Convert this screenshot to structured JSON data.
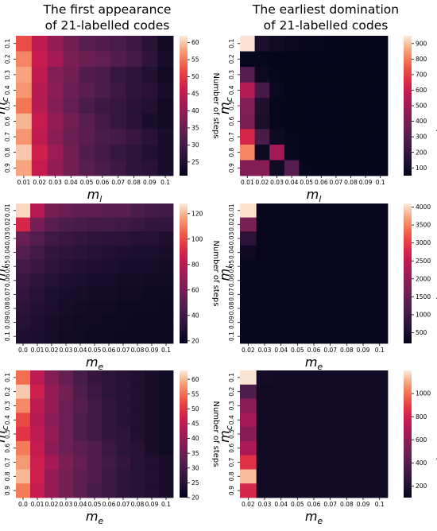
{
  "column_titles": {
    "left": [
      "The first appearance",
      "of 21-labelled codes"
    ],
    "right": [
      "The earliest domination",
      "of 21-labelled codes"
    ]
  },
  "colorbar_label": "Number of steps",
  "chart_data": [
    {
      "id": "r1c1",
      "type": "heatmap",
      "xlabel": "m_l",
      "ylabel": "m_c",
      "x": [
        "0.01",
        "0.02",
        "0.03",
        "0.04",
        "0.05",
        "0.06",
        "0.07",
        "0.08",
        "0.09",
        "0.1"
      ],
      "y": [
        "0.1",
        "0.2",
        "0.3",
        "0.4",
        "0.5",
        "0.6",
        "0.7",
        "0.8",
        "0.9"
      ],
      "vmin": 21,
      "vmax": 62,
      "colorbar_ticks": [
        25,
        30,
        35,
        40,
        45,
        50,
        55,
        60
      ],
      "values": [
        [
          52,
          45,
          40,
          36,
          33,
          32,
          31,
          29,
          26,
          23
        ],
        [
          56,
          46,
          42,
          37,
          35,
          34,
          32,
          30,
          27,
          24
        ],
        [
          58,
          45,
          38,
          36,
          32,
          31,
          28,
          27,
          25,
          23
        ],
        [
          57,
          44,
          39,
          35,
          33,
          31,
          29,
          27,
          26,
          24
        ],
        [
          55,
          44,
          38,
          34,
          31,
          29,
          28,
          26,
          25,
          23
        ],
        [
          59,
          46,
          40,
          36,
          33,
          30,
          28,
          26,
          24,
          23
        ],
        [
          57,
          45,
          39,
          35,
          33,
          31,
          30,
          28,
          26,
          24
        ],
        [
          60,
          47,
          41,
          36,
          32,
          30,
          28,
          27,
          25,
          24
        ],
        [
          58,
          46,
          40,
          36,
          33,
          31,
          29,
          27,
          26,
          24
        ]
      ]
    },
    {
      "id": "r1c2",
      "type": "heatmap",
      "xlabel": "m_l",
      "ylabel": "m_c",
      "x": [
        "0.01",
        "0.02",
        "0.03",
        "0.04",
        "0.05",
        "0.06",
        "0.07",
        "0.08",
        "0.09",
        "0.1"
      ],
      "y": [
        "0.1",
        "0.2",
        "0.3",
        "0.4",
        "0.5",
        "0.6",
        "0.7",
        "0.8",
        "0.9"
      ],
      "vmin": 50,
      "vmax": 950,
      "colorbar_ticks": [
        100,
        200,
        300,
        400,
        500,
        600,
        700,
        800,
        900
      ],
      "values": [
        [
          940,
          120,
          90,
          70,
          60,
          60,
          55,
          55,
          55,
          55
        ],
        [
          60,
          60,
          55,
          55,
          55,
          55,
          55,
          55,
          55,
          55
        ],
        [
          300,
          80,
          60,
          55,
          55,
          55,
          55,
          55,
          55,
          55
        ],
        [
          550,
          250,
          70,
          55,
          55,
          55,
          55,
          55,
          55,
          55
        ],
        [
          420,
          130,
          60,
          55,
          55,
          55,
          55,
          55,
          55,
          55
        ],
        [
          400,
          120,
          60,
          55,
          55,
          55,
          55,
          55,
          55,
          55
        ],
        [
          640,
          260,
          80,
          60,
          55,
          55,
          55,
          55,
          55,
          55
        ],
        [
          820,
          80,
          500,
          60,
          55,
          55,
          55,
          55,
          55,
          55
        ],
        [
          420,
          430,
          90,
          300,
          60,
          55,
          55,
          55,
          55,
          55
        ]
      ]
    },
    {
      "id": "r2c1",
      "type": "heatmap",
      "xlabel": "m_e",
      "ylabel": "m_l",
      "x": [
        "0.0",
        "0.01",
        "0.02",
        "0.03",
        "0.04",
        "0.05",
        "0.06",
        "0.07",
        "0.08",
        "0.09",
        "0.1"
      ],
      "y": [
        "0.01",
        "0.02",
        "0.03",
        "0.04",
        "0.05",
        "0.06",
        "0.07",
        "0.08",
        "0.09",
        "0.1"
      ],
      "vmin": 18,
      "vmax": 128,
      "colorbar_ticks": [
        20,
        40,
        60,
        80,
        100,
        120
      ],
      "values": [
        [
          125,
          80,
          60,
          55,
          52,
          52,
          50,
          50,
          45,
          42,
          40
        ],
        [
          90,
          60,
          50,
          45,
          44,
          42,
          42,
          40,
          38,
          36,
          35
        ],
        [
          55,
          48,
          40,
          38,
          36,
          34,
          33,
          32,
          30,
          30,
          28
        ],
        [
          48,
          42,
          36,
          34,
          32,
          30,
          29,
          28,
          27,
          27,
          26
        ],
        [
          42,
          38,
          34,
          31,
          29,
          28,
          27,
          26,
          25,
          25,
          24
        ],
        [
          38,
          34,
          30,
          28,
          27,
          26,
          25,
          24,
          24,
          23,
          23
        ],
        [
          35,
          31,
          28,
          26,
          25,
          24,
          24,
          23,
          23,
          22,
          22
        ],
        [
          32,
          29,
          27,
          25,
          24,
          23,
          23,
          22,
          22,
          22,
          21
        ],
        [
          30,
          28,
          26,
          24,
          23,
          23,
          22,
          22,
          21,
          21,
          21
        ],
        [
          28,
          27,
          25,
          23,
          23,
          22,
          22,
          21,
          21,
          21,
          21
        ]
      ]
    },
    {
      "id": "r2c2",
      "type": "heatmap",
      "xlabel": "m_e",
      "ylabel": "m_l",
      "x": [
        "0.02",
        "0.03",
        "0.04",
        "0.05",
        "0.06",
        "0.07",
        "0.08",
        "0.09",
        "0.1"
      ],
      "y": [
        "0.01",
        "0.02",
        "0.03",
        "0.04",
        "0.05",
        "0.06",
        "0.07",
        "0.08",
        "0.09",
        "0.1"
      ],
      "vmin": 200,
      "vmax": 4100,
      "colorbar_ticks": [
        500,
        1000,
        1500,
        2000,
        2500,
        3000,
        3500,
        4000
      ],
      "values": [
        [
          4050,
          260,
          250,
          250,
          250,
          250,
          250,
          250,
          250
        ],
        [
          1700,
          250,
          250,
          250,
          250,
          250,
          250,
          250,
          250
        ],
        [
          700,
          250,
          250,
          250,
          250,
          250,
          250,
          250,
          250
        ],
        [
          350,
          250,
          250,
          250,
          250,
          250,
          250,
          250,
          250
        ],
        [
          280,
          250,
          250,
          250,
          250,
          250,
          250,
          250,
          250
        ],
        [
          270,
          250,
          250,
          250,
          250,
          250,
          250,
          250,
          250
        ],
        [
          260,
          250,
          250,
          250,
          250,
          250,
          250,
          250,
          250
        ],
        [
          260,
          250,
          250,
          250,
          250,
          250,
          250,
          250,
          250
        ],
        [
          255,
          250,
          250,
          250,
          250,
          250,
          250,
          250,
          250
        ],
        [
          255,
          250,
          250,
          250,
          250,
          250,
          250,
          250,
          250
        ]
      ]
    },
    {
      "id": "r3c1",
      "type": "heatmap",
      "xlabel": "m_e",
      "ylabel": "m_c",
      "x": [
        "0.0",
        "0.01",
        "0.02",
        "0.03",
        "0.04",
        "0.05",
        "0.06",
        "0.07",
        "0.08",
        "0.09",
        "0.1"
      ],
      "y": [
        "0.1",
        "0.2",
        "0.3",
        "0.4",
        "0.5",
        "0.6",
        "0.7",
        "0.8",
        "0.9"
      ],
      "vmin": 20,
      "vmax": 63,
      "colorbar_ticks": [
        20,
        25,
        30,
        35,
        40,
        45,
        50,
        55,
        60
      ],
      "values": [
        [
          55,
          45,
          38,
          34,
          30,
          27,
          26,
          25,
          24,
          23,
          22
        ],
        [
          61,
          47,
          40,
          36,
          31,
          28,
          26,
          25,
          24,
          23,
          22
        ],
        [
          57,
          45,
          40,
          35,
          32,
          29,
          27,
          25,
          24,
          23,
          22
        ],
        [
          52,
          44,
          39,
          35,
          31,
          29,
          27,
          25,
          24,
          23,
          22
        ],
        [
          50,
          45,
          40,
          35,
          31,
          29,
          27,
          26,
          24,
          23,
          22
        ],
        [
          56,
          46,
          39,
          35,
          33,
          31,
          28,
          26,
          25,
          23,
          22
        ],
        [
          58,
          47,
          42,
          37,
          34,
          31,
          29,
          27,
          25,
          24,
          23
        ],
        [
          60,
          47,
          40,
          36,
          33,
          31,
          28,
          26,
          25,
          24,
          23
        ],
        [
          56,
          46,
          40,
          36,
          33,
          30,
          28,
          26,
          25,
          24,
          23
        ]
      ]
    },
    {
      "id": "r3c2",
      "type": "heatmap",
      "xlabel": "m_e",
      "ylabel": "m_c",
      "x": [
        "0.02",
        "0.03",
        "0.04",
        "0.05",
        "0.06",
        "0.07",
        "0.08",
        "0.09",
        "0.1"
      ],
      "y": [
        "0.1",
        "0.2",
        "0.3",
        "0.4",
        "0.5",
        "0.6",
        "0.7",
        "0.8",
        "0.9"
      ],
      "vmin": 100,
      "vmax": 1200,
      "colorbar_ticks": [
        200,
        400,
        600,
        800,
        1000
      ],
      "values": [
        [
          1190,
          160,
          150,
          150,
          150,
          150,
          150,
          150,
          150
        ],
        [
          380,
          150,
          150,
          150,
          150,
          150,
          150,
          150,
          150
        ],
        [
          580,
          150,
          150,
          150,
          150,
          150,
          150,
          150,
          150
        ],
        [
          650,
          150,
          150,
          150,
          150,
          150,
          150,
          150,
          150
        ],
        [
          560,
          150,
          150,
          150,
          150,
          150,
          150,
          150,
          150
        ],
        [
          680,
          150,
          150,
          150,
          150,
          150,
          150,
          150,
          150
        ],
        [
          860,
          150,
          150,
          150,
          150,
          150,
          150,
          150,
          150
        ],
        [
          1130,
          150,
          150,
          150,
          150,
          150,
          150,
          150,
          150
        ],
        [
          820,
          150,
          150,
          150,
          150,
          150,
          150,
          150,
          150
        ]
      ]
    }
  ]
}
